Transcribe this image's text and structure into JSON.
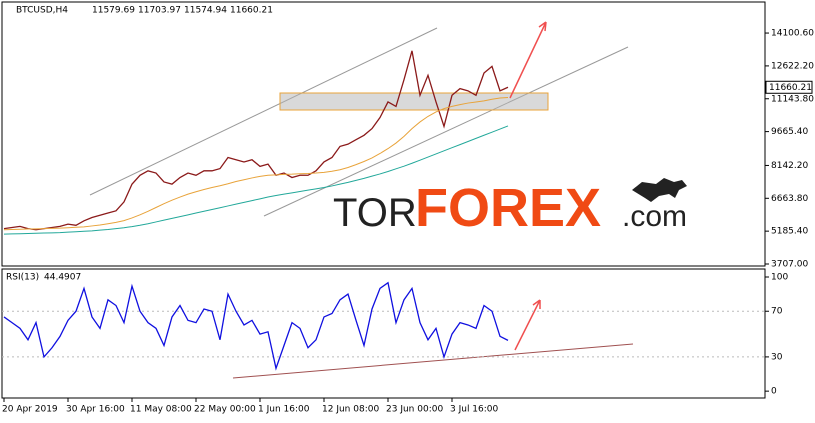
{
  "header": {
    "symbol": "BTCUSD,H4",
    "ohlc": [
      11579.69,
      11703.97,
      11574.94,
      11660.21
    ]
  },
  "watermark": {
    "part1": "TOR",
    "part2": "FOREX",
    "part3": ".com"
  },
  "chart_data": [
    {
      "type": "line",
      "ylim": [
        3617,
        15498
      ],
      "yticks": [
        {
          "value": 3707,
          "label": "3707.00"
        },
        {
          "value": 5185.4,
          "label": "5185.40"
        },
        {
          "value": 6663.8,
          "label": "6663.80"
        },
        {
          "value": 8142.2,
          "label": "8142.20"
        },
        {
          "value": 9665.4,
          "label": "9665.40"
        },
        {
          "value": 11143.8,
          "label": "11143.80"
        },
        {
          "value": 12622.2,
          "label": "12622.20"
        },
        {
          "value": 14100.6,
          "label": "14100.60"
        }
      ],
      "series": [
        {
          "color": "#8b1a1a",
          "values": [
            5300,
            5350,
            5400,
            5300,
            5250,
            5300,
            5350,
            5400,
            5500,
            5450,
            5650,
            5800,
            5900,
            6000,
            6100,
            6500,
            7300,
            7700,
            7900,
            7800,
            7400,
            7300,
            7600,
            7800,
            7700,
            7900,
            7900,
            8000,
            8500,
            8400,
            8300,
            8400,
            8100,
            8200,
            7700,
            7800,
            7600,
            7700,
            7700,
            7900,
            8300,
            8500,
            9000,
            9100,
            9300,
            9500,
            9800,
            10300,
            11000,
            10800,
            12000,
            13300,
            11300,
            12200,
            11000,
            9900,
            11300,
            11600,
            11500,
            11300,
            12300,
            12600,
            11500,
            11660.21
          ]
        },
        {
          "color": "#e8a33a",
          "values": [
            5250,
            5260,
            5270,
            5280,
            5290,
            5300,
            5310,
            5320,
            5340,
            5360,
            5380,
            5420,
            5460,
            5520,
            5580,
            5660,
            5780,
            5920,
            6080,
            6250,
            6420,
            6580,
            6720,
            6850,
            6960,
            7060,
            7150,
            7230,
            7320,
            7420,
            7500,
            7580,
            7650,
            7700,
            7720,
            7740,
            7750,
            7770,
            7780,
            7800,
            7830,
            7880,
            7950,
            8050,
            8180,
            8320,
            8480,
            8680,
            8900,
            9150,
            9450,
            9800,
            10100,
            10350,
            10550,
            10700,
            10800,
            10880,
            10950,
            11000,
            11050,
            11120,
            11180,
            11200
          ]
        },
        {
          "color": "#22a89a",
          "values": [
            5050,
            5060,
            5070,
            5080,
            5090,
            5100,
            5110,
            5120,
            5140,
            5160,
            5180,
            5200,
            5230,
            5260,
            5300,
            5340,
            5390,
            5450,
            5520,
            5600,
            5680,
            5760,
            5840,
            5920,
            6000,
            6080,
            6160,
            6240,
            6320,
            6400,
            6480,
            6560,
            6640,
            6720,
            6790,
            6850,
            6910,
            6970,
            7030,
            7090,
            7150,
            7220,
            7300,
            7380,
            7470,
            7560,
            7660,
            7760,
            7870,
            7990,
            8110,
            8240,
            8380,
            8520,
            8660,
            8800,
            8940,
            9080,
            9220,
            9360,
            9500,
            9640,
            9780,
            9920
          ]
        }
      ]
    },
    {
      "type": "line",
      "indicator": "RSI(13)",
      "ylim": [
        -6,
        107
      ],
      "yticks": [
        0,
        30,
        70,
        100
      ],
      "categories": [
        "20 Apr 2019",
        null,
        null,
        null,
        null,
        null,
        null,
        null,
        "30 Apr 16:00",
        null,
        null,
        null,
        null,
        null,
        null,
        null,
        "11 May 08:00",
        null,
        null,
        null,
        null,
        null,
        null,
        null,
        "22 May 00:00",
        null,
        null,
        null,
        null,
        null,
        null,
        null,
        "1 Jun 16:00",
        null,
        null,
        null,
        null,
        null,
        null,
        null,
        "12 Jun 08:00",
        null,
        null,
        null,
        null,
        null,
        null,
        null,
        "23 Jun 00:00",
        null,
        null,
        null,
        null,
        null,
        null,
        null,
        "3 Jul 16:00",
        null,
        null,
        null,
        null,
        null,
        null,
        null
      ],
      "series": [
        {
          "color": "#1010e0",
          "values": [
            65,
            60,
            55,
            45,
            60,
            30,
            38,
            48,
            62,
            70,
            90,
            65,
            55,
            80,
            75,
            60,
            92,
            70,
            60,
            55,
            40,
            65,
            75,
            62,
            60,
            72,
            70,
            45,
            85,
            70,
            58,
            62,
            50,
            52,
            20,
            40,
            60,
            55,
            38,
            45,
            65,
            68,
            80,
            85,
            62,
            40,
            72,
            90,
            95,
            60,
            80,
            90,
            60,
            45,
            55,
            30,
            50,
            60,
            58,
            55,
            75,
            70,
            48,
            44.4907
          ]
        }
      ]
    }
  ]
}
